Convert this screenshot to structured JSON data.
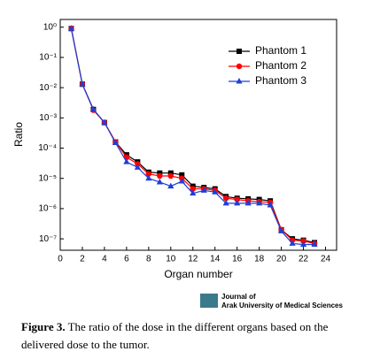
{
  "chart_data": {
    "type": "line",
    "ylabel": "Ratio",
    "xlabel": "Organ number",
    "log_y": true,
    "legend": "upper right",
    "x": [
      1,
      2,
      3,
      4,
      5,
      6,
      7,
      8,
      9,
      10,
      11,
      12,
      13,
      14,
      15,
      16,
      17,
      18,
      19,
      20,
      21,
      22,
      23
    ],
    "xlim": [
      0,
      25
    ],
    "xticks": [
      0,
      2,
      4,
      6,
      8,
      10,
      12,
      14,
      16,
      18,
      20,
      22,
      24
    ],
    "ylim": [
      4.2e-08,
      1.8
    ],
    "yticks": [
      {
        "value": 1,
        "label": "10⁰"
      },
      {
        "value": 0.1,
        "label": "10⁻¹"
      },
      {
        "value": 0.01,
        "label": "10⁻²"
      },
      {
        "value": 0.001,
        "label": "10⁻³"
      },
      {
        "value": 0.0001,
        "label": "10⁻⁴"
      },
      {
        "value": 1e-05,
        "label": "10⁻⁵"
      },
      {
        "value": 1e-06,
        "label": "10⁻⁶"
      },
      {
        "value": 1e-07,
        "label": "10⁻⁷"
      }
    ],
    "series": [
      {
        "name": "Phantom 1",
        "color": "#000000",
        "marker": "square",
        "values": [
          0.9,
          0.013,
          0.0019,
          0.0007,
          0.00016,
          6e-05,
          3.5e-05,
          1.6e-05,
          1.5e-05,
          1.5e-05,
          1.3e-05,
          5.5e-06,
          5e-06,
          4.5e-06,
          2.5e-06,
          2.2e-06,
          2.1e-06,
          2e-06,
          1.8e-06,
          2e-07,
          1e-07,
          9e-08,
          7.5e-08
        ]
      },
      {
        "name": "Phantom 2",
        "color": "#ff0000",
        "marker": "circle",
        "values": [
          0.9,
          0.013,
          0.0018,
          0.0007,
          0.00016,
          5e-05,
          3e-05,
          1.4e-05,
          1.2e-05,
          1.2e-05,
          1e-05,
          4.5e-06,
          4.5e-06,
          4e-06,
          2.2e-06,
          2e-06,
          1.8e-06,
          1.7e-06,
          1.6e-06,
          2e-07,
          9e-08,
          8.5e-08,
          7e-08
        ]
      },
      {
        "name": "Phantom 3",
        "color": "#1f3fd8",
        "marker": "triangle",
        "values": [
          0.9,
          0.013,
          0.0019,
          0.0007,
          0.00015,
          3.5e-05,
          2.3e-05,
          1e-05,
          7.5e-06,
          5.5e-06,
          8e-06,
          3.2e-06,
          4e-06,
          3.5e-06,
          1.5e-06,
          1.5e-06,
          1.5e-06,
          1.5e-06,
          1.3e-06,
          1.8e-07,
          7e-08,
          6.5e-08,
          6.5e-08
        ]
      }
    ]
  },
  "logo": {
    "line1": "Journal of",
    "line2": "Arak University of Medical Sciences"
  },
  "caption": {
    "label": "Figure 3.",
    "text": "The ratio of the dose in the different organs based on the delivered dose to the tumor."
  }
}
